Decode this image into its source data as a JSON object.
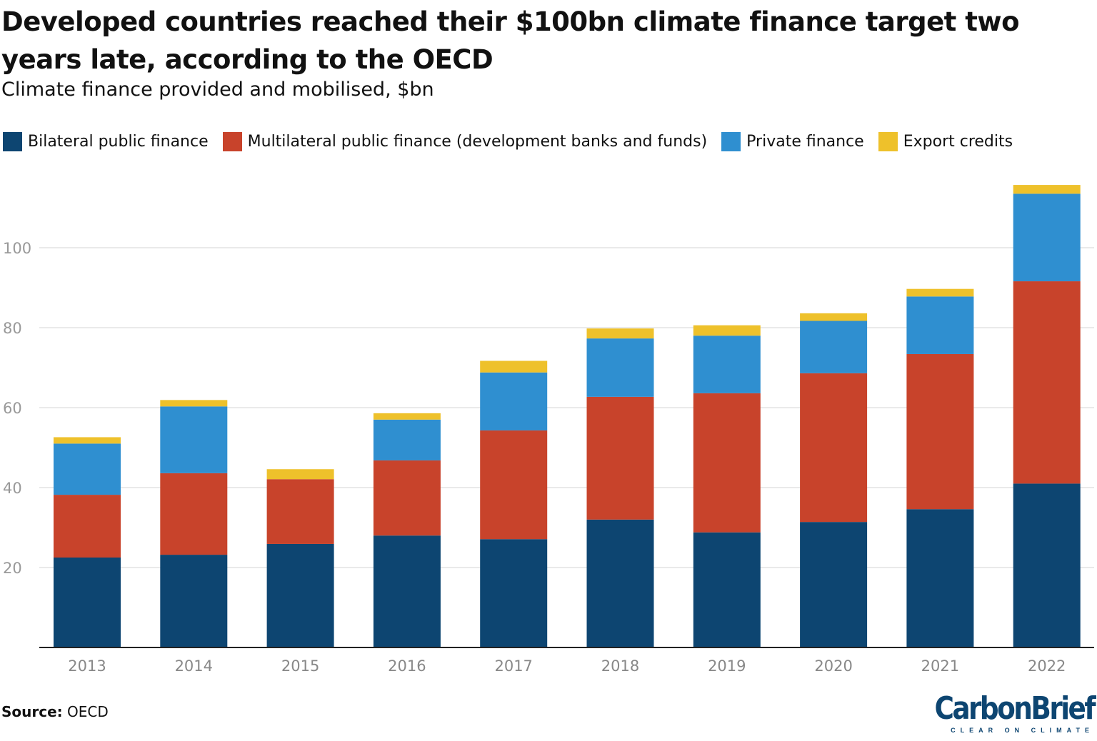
{
  "chart_data": {
    "type": "bar",
    "stacked": true,
    "title": "Developed countries reached their $100bn climate finance target two years late, according to the OECD",
    "subtitle": "Climate finance provided and mobilised, $bn",
    "categories": [
      "2013",
      "2014",
      "2015",
      "2016",
      "2017",
      "2018",
      "2019",
      "2020",
      "2021",
      "2022"
    ],
    "series": [
      {
        "name": "Bilateral public finance",
        "color": "#0d4571",
        "values": [
          22.5,
          23.2,
          25.9,
          28.0,
          27.1,
          32.0,
          28.8,
          31.4,
          34.6,
          41.0
        ]
      },
      {
        "name": "Multilateral public finance (development banks and funds)",
        "color": "#c8432b",
        "values": [
          15.7,
          20.4,
          16.2,
          18.8,
          27.2,
          30.7,
          34.8,
          37.2,
          38.8,
          50.6
        ]
      },
      {
        "name": "Private finance",
        "color": "#2f8fd0",
        "values": [
          12.8,
          16.7,
          0,
          10.2,
          14.5,
          14.6,
          14.4,
          13.1,
          14.4,
          21.9
        ]
      },
      {
        "name": "Export credits",
        "color": "#eec12b",
        "values": [
          1.6,
          1.6,
          2.5,
          1.6,
          2.9,
          2.5,
          2.6,
          1.9,
          1.9,
          2.2
        ]
      }
    ],
    "yticks": [
      20,
      40,
      60,
      80,
      100
    ],
    "ylim": [
      0,
      120
    ],
    "xlabel": "",
    "ylabel": "",
    "grid": true,
    "legend": "top"
  },
  "source_label": "Source:",
  "source_value": "OECD",
  "logo": {
    "name": "CarbonBrief",
    "tagline": "CLEAR ON CLIMATE"
  }
}
